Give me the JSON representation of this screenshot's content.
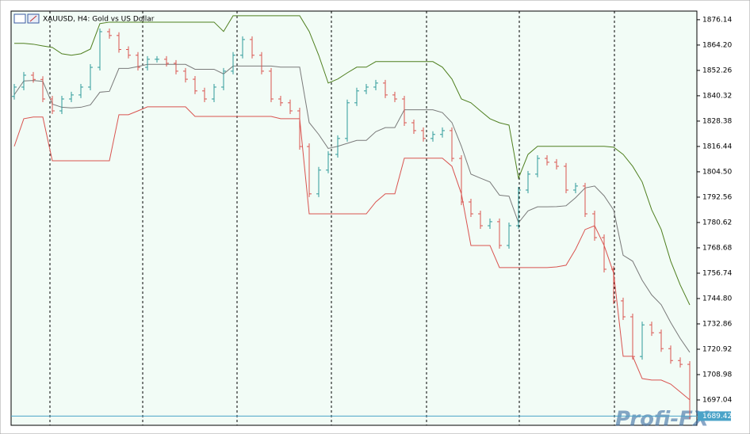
{
  "chart_data": {
    "type": "ohlc",
    "title": "XAUUSD, H4:  Gold vs US Dollar",
    "up_color": "#2e9a9a",
    "down_color": "#d9534f",
    "open": [
      1840.0,
      1844.4,
      1850.0,
      1848.0,
      1838.8,
      1833.2,
      1838.8,
      1840.7,
      1844.4,
      1853.7,
      1870.5,
      1868.7,
      1862.1,
      1859.4,
      1853.7,
      1857.5,
      1857.5,
      1855.6,
      1851.9,
      1848.1,
      1842.6,
      1838.8,
      1844.4,
      1851.9,
      1859.4,
      1866.8,
      1859.4,
      1851.9,
      1838.8,
      1837.0,
      1833.2,
      1816.4,
      1794.1,
      1805.3,
      1812.7,
      1820.2,
      1837.0,
      1842.6,
      1844.4,
      1846.3,
      1840.7,
      1838.8,
      1827.6,
      1823.9,
      1820.2,
      1822.1,
      1823.9,
      1810.8,
      1790.3,
      1784.7,
      1779.1,
      1781.0,
      1769.8,
      1779.1,
      1795.9,
      1803.4,
      1810.8,
      1809.0,
      1807.1,
      1795.9,
      1797.8,
      1784.7,
      1773.5,
      1758.6,
      1743.7,
      1736.2,
      1717.5,
      1732.4,
      1728.7,
      1721.2,
      1715.6,
      1713.8
    ],
    "high": [
      1845.9,
      1851.5,
      1851.5,
      1849.5,
      1840.3,
      1840.3,
      1842.2,
      1845.9,
      1855.2,
      1872.0,
      1872.0,
      1870.2,
      1863.6,
      1860.9,
      1859.0,
      1859.0,
      1859.0,
      1857.1,
      1853.4,
      1849.6,
      1844.1,
      1845.9,
      1853.4,
      1860.9,
      1868.3,
      1868.3,
      1860.9,
      1853.4,
      1840.3,
      1838.5,
      1834.7,
      1817.9,
      1806.8,
      1814.2,
      1821.7,
      1838.5,
      1844.1,
      1845.9,
      1847.8,
      1847.8,
      1842.2,
      1840.3,
      1829.1,
      1825.4,
      1823.6,
      1825.4,
      1825.4,
      1812.3,
      1791.8,
      1786.2,
      1782.5,
      1782.5,
      1780.6,
      1797.4,
      1804.9,
      1812.3,
      1812.3,
      1810.5,
      1808.6,
      1799.3,
      1799.3,
      1786.2,
      1775.0,
      1760.1,
      1745.2,
      1737.7,
      1733.9,
      1733.9,
      1730.2,
      1722.7,
      1717.1,
      1715.3
    ],
    "low": [
      1838.5,
      1842.9,
      1846.5,
      1837.3,
      1831.7,
      1831.7,
      1837.3,
      1839.2,
      1842.9,
      1852.2,
      1867.2,
      1860.6,
      1857.9,
      1852.2,
      1852.2,
      1856.0,
      1854.1,
      1850.4,
      1846.6,
      1841.1,
      1837.3,
      1837.3,
      1842.9,
      1850.4,
      1857.9,
      1857.9,
      1850.4,
      1837.3,
      1835.5,
      1831.7,
      1814.9,
      1792.6,
      1792.6,
      1803.8,
      1811.2,
      1818.7,
      1835.5,
      1841.1,
      1842.9,
      1839.2,
      1837.3,
      1826.1,
      1822.4,
      1818.7,
      1818.7,
      1820.6,
      1809.3,
      1788.8,
      1783.2,
      1777.6,
      1777.6,
      1768.3,
      1768.3,
      1777.6,
      1794.4,
      1801.9,
      1807.5,
      1805.6,
      1794.4,
      1794.4,
      1783.2,
      1772.0,
      1757.1,
      1742.2,
      1734.7,
      1716.0,
      1716.0,
      1727.2,
      1719.7,
      1714.1,
      1712.3,
      1687.9
    ],
    "close": [
      1844.4,
      1850.0,
      1848.0,
      1838.8,
      1833.2,
      1838.8,
      1840.7,
      1844.4,
      1853.7,
      1870.5,
      1868.7,
      1862.1,
      1859.4,
      1853.7,
      1857.5,
      1857.5,
      1855.6,
      1851.9,
      1848.1,
      1842.6,
      1838.8,
      1844.4,
      1851.9,
      1859.4,
      1866.8,
      1859.4,
      1851.9,
      1838.8,
      1837.0,
      1833.2,
      1816.4,
      1794.1,
      1805.3,
      1812.7,
      1820.2,
      1837.0,
      1842.6,
      1844.4,
      1846.3,
      1840.7,
      1838.8,
      1827.6,
      1823.9,
      1820.2,
      1822.1,
      1823.9,
      1810.8,
      1790.3,
      1784.7,
      1779.1,
      1781.0,
      1769.8,
      1779.1,
      1795.9,
      1803.4,
      1810.8,
      1809.0,
      1807.1,
      1795.9,
      1797.8,
      1784.7,
      1773.5,
      1758.6,
      1743.7,
      1736.2,
      1717.5,
      1732.4,
      1728.7,
      1721.2,
      1715.6,
      1713.8,
      1689.4
    ],
    "indicator_lines": [
      {
        "color": "#4f7f1f",
        "values": [
          1865.0,
          1865.0,
          1864.6,
          1863.8,
          1863.1,
          1860.1,
          1859.4,
          1860.1,
          1862.3,
          1874.3,
          1875.0,
          1875.0,
          1875.0,
          1875.0,
          1875.0,
          1875.0,
          1875.0,
          1875.0,
          1875.0,
          1875.0,
          1875.0,
          1875.0,
          1870.6,
          1878.0,
          1878.0,
          1878.0,
          1878.0,
          1878.0,
          1878.0,
          1878.0,
          1878.0,
          1870.6,
          1859.4,
          1846.3,
          1848.2,
          1851.1,
          1853.8,
          1853.8,
          1856.4,
          1856.4,
          1856.4,
          1856.4,
          1856.4,
          1856.4,
          1856.4,
          1853.8,
          1848.2,
          1838.8,
          1837.0,
          1833.2,
          1829.5,
          1827.6,
          1826.5,
          1801.5,
          1812.7,
          1816.5,
          1816.5,
          1816.5,
          1816.5,
          1816.5,
          1816.5,
          1816.5,
          1816.5,
          1816.1,
          1812.7,
          1807.1,
          1799.7,
          1786.6,
          1777.3,
          1762.4,
          1751.2,
          1741.8
        ]
      },
      {
        "color": "#7a7a7a",
        "values": [
          1840.8,
          1847.3,
          1847.5,
          1847.1,
          1836.4,
          1834.9,
          1834.6,
          1834.9,
          1836.0,
          1842.0,
          1842.4,
          1853.2,
          1853.2,
          1854.1,
          1855.1,
          1855.1,
          1855.1,
          1855.1,
          1855.1,
          1852.8,
          1852.8,
          1852.8,
          1850.6,
          1854.3,
          1854.3,
          1854.3,
          1854.3,
          1854.3,
          1853.8,
          1853.8,
          1853.8,
          1827.7,
          1822.1,
          1815.5,
          1816.5,
          1817.9,
          1819.3,
          1819.3,
          1823.4,
          1825.3,
          1825.3,
          1833.7,
          1833.7,
          1833.7,
          1833.7,
          1832.4,
          1827.7,
          1816.5,
          1803.4,
          1801.5,
          1799.7,
          1793.5,
          1793.0,
          1780.5,
          1786.1,
          1788.0,
          1788.0,
          1788.1,
          1788.5,
          1792.3,
          1796.9,
          1797.8,
          1793.2,
          1786.5,
          1765.2,
          1762.4,
          1753.4,
          1746.5,
          1741.9,
          1733.5,
          1726.0,
          1719.5
        ]
      },
      {
        "color": "#d9534f",
        "values": [
          1816.5,
          1829.5,
          1830.3,
          1830.3,
          1809.7,
          1809.7,
          1809.7,
          1809.7,
          1809.7,
          1809.7,
          1809.7,
          1831.4,
          1831.4,
          1833.2,
          1835.1,
          1835.1,
          1835.1,
          1835.1,
          1835.1,
          1830.6,
          1830.6,
          1830.6,
          1830.6,
          1830.6,
          1830.6,
          1830.6,
          1830.6,
          1830.6,
          1829.5,
          1829.5,
          1829.5,
          1784.7,
          1784.7,
          1784.7,
          1784.7,
          1784.7,
          1784.7,
          1784.7,
          1790.3,
          1794.1,
          1794.1,
          1810.9,
          1810.9,
          1810.9,
          1810.9,
          1810.9,
          1807.1,
          1794.1,
          1769.8,
          1769.8,
          1769.8,
          1759.4,
          1759.4,
          1759.4,
          1759.4,
          1759.4,
          1759.4,
          1759.7,
          1760.5,
          1768.0,
          1777.3,
          1779.1,
          1769.8,
          1756.8,
          1717.6,
          1717.6,
          1707.1,
          1706.4,
          1706.4,
          1704.5,
          1700.8,
          1697.1
        ]
      }
    ],
    "ylim": [
      1685.1,
      1880.2
    ],
    "yticks": [
      1876.14,
      {
        "value": 1864.2,
        "label": "1864.20"
      },
      1852.26,
      1840.32,
      1828.38,
      1816.44,
      {
        "value": 1804.5,
        "label": "1804.50"
      },
      1792.56,
      1780.62,
      1768.68,
      1756.74,
      {
        "value": 1744.8,
        "label": "1744.80"
      },
      1732.86,
      1720.92,
      1708.98,
      1697.04
    ],
    "last_price": 1689.42,
    "last_price_color": "#4aa3c8"
  },
  "watermark": "Profi-FX"
}
